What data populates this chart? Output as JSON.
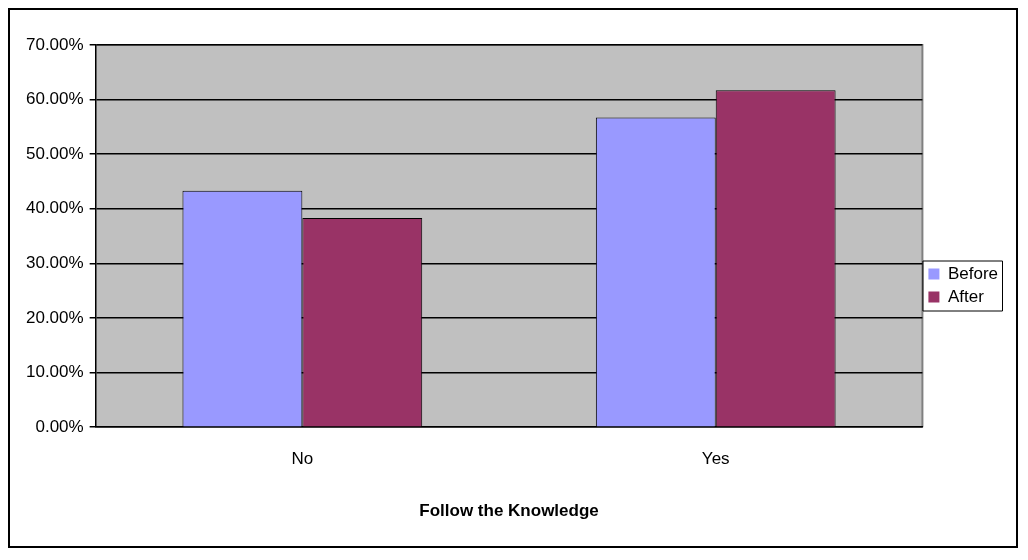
{
  "chart_data": {
    "type": "bar",
    "xlabel": "Follow the Knowledge",
    "categories": [
      "No",
      "Yes"
    ],
    "series": [
      {
        "name": "Before",
        "color": "#9999ff",
        "values": [
          43.3,
          56.7
        ]
      },
      {
        "name": "After",
        "color": "#993366",
        "values": [
          38.3,
          61.7
        ]
      }
    ],
    "ylim": [
      0,
      70
    ],
    "yticks": [
      {
        "value": 0,
        "label": "0.00%"
      },
      {
        "value": 10,
        "label": "10.00%"
      },
      {
        "value": 20,
        "label": "20.00%"
      },
      {
        "value": 30,
        "label": "30.00%"
      },
      {
        "value": 40,
        "label": "40.00%"
      },
      {
        "value": 50,
        "label": "50.00%"
      },
      {
        "value": 60,
        "label": "60.00%"
      },
      {
        "value": 70,
        "label": "70.00%"
      }
    ],
    "grid": "y",
    "legend": "right"
  }
}
